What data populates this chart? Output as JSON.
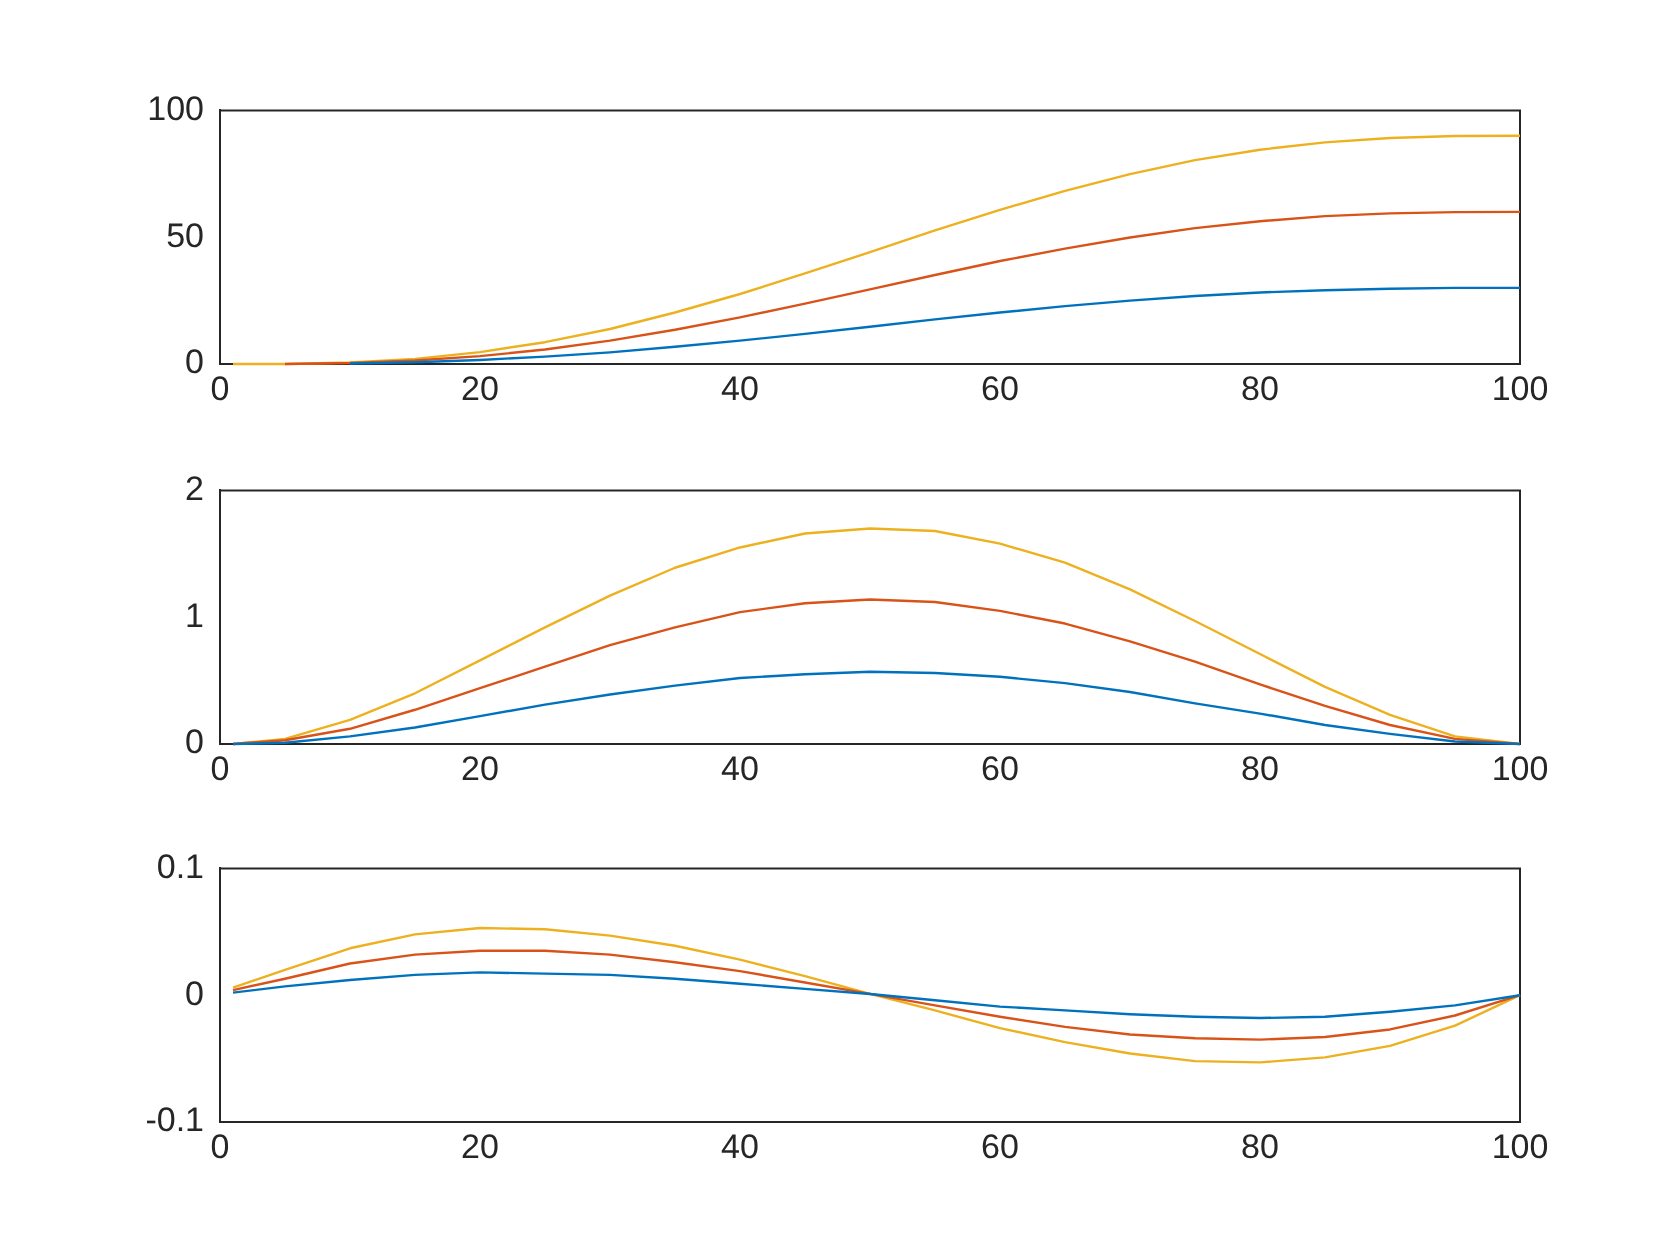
{
  "chart_data": [
    {
      "type": "line",
      "x": [
        1,
        5,
        10,
        15,
        20,
        25,
        30,
        35,
        40,
        45,
        50,
        55,
        60,
        65,
        70,
        75,
        80,
        85,
        90,
        95,
        100
      ],
      "xlim": [
        0,
        100
      ],
      "xticks": [
        0,
        20,
        40,
        60,
        80,
        100
      ],
      "ylim": [
        0,
        100
      ],
      "yticks": [
        0,
        50,
        100
      ],
      "grid": false,
      "legend": false,
      "marker": "none",
      "line_style": "solid",
      "series": [
        {
          "color": "#0072bd",
          "values": [
            null,
            null,
            0.2,
            0.7,
            1.6,
            2.9,
            4.6,
            6.8,
            9.2,
            11.9,
            14.7,
            17.6,
            20.3,
            22.8,
            25.0,
            26.8,
            28.2,
            29.1,
            29.7,
            30.0,
            30
          ]
        },
        {
          "color": "#d95319",
          "values": [
            null,
            0,
            0.4,
            1.4,
            3.1,
            5.7,
            9.2,
            13.5,
            18.4,
            23.8,
            29.4,
            35.1,
            40.6,
            45.5,
            49.9,
            53.6,
            56.3,
            58.3,
            59.4,
            59.9,
            60
          ]
        },
        {
          "color": "#edb120",
          "values": [
            0,
            0,
            0.6,
            2.0,
            4.7,
            8.6,
            13.8,
            20.3,
            27.6,
            35.7,
            44.1,
            52.7,
            60.8,
            68.3,
            74.9,
            80.4,
            84.5,
            87.4,
            89.1,
            89.9,
            90
          ]
        }
      ]
    },
    {
      "type": "line",
      "x": [
        1,
        5,
        10,
        15,
        20,
        25,
        30,
        35,
        40,
        45,
        50,
        55,
        60,
        65,
        70,
        75,
        80,
        85,
        90,
        95,
        100
      ],
      "xlim": [
        0,
        100
      ],
      "xticks": [
        0,
        20,
        40,
        60,
        80,
        100
      ],
      "ylim": [
        0,
        2
      ],
      "yticks": [
        0,
        1,
        2
      ],
      "grid": false,
      "legend": false,
      "marker": "none",
      "line_style": "solid",
      "series": [
        {
          "color": "#0072bd",
          "values": [
            0,
            0.01,
            0.06,
            0.13,
            0.22,
            0.31,
            0.39,
            0.46,
            0.52,
            0.55,
            0.57,
            0.56,
            0.53,
            0.48,
            0.41,
            0.32,
            0.24,
            0.15,
            0.08,
            0.02,
            0
          ]
        },
        {
          "color": "#d95319",
          "values": [
            0,
            0.03,
            0.12,
            0.27,
            0.44,
            0.61,
            0.78,
            0.92,
            1.04,
            1.11,
            1.14,
            1.12,
            1.05,
            0.95,
            0.81,
            0.65,
            0.47,
            0.3,
            0.15,
            0.04,
            0
          ]
        },
        {
          "color": "#edb120",
          "values": [
            0,
            0.04,
            0.19,
            0.4,
            0.66,
            0.92,
            1.17,
            1.39,
            1.55,
            1.66,
            1.7,
            1.68,
            1.58,
            1.43,
            1.22,
            0.97,
            0.71,
            0.45,
            0.23,
            0.06,
            0
          ]
        }
      ]
    },
    {
      "type": "line",
      "x": [
        1,
        5,
        10,
        15,
        20,
        25,
        30,
        35,
        40,
        45,
        50,
        55,
        60,
        65,
        70,
        75,
        80,
        85,
        90,
        95,
        100
      ],
      "xlim": [
        0,
        100
      ],
      "xticks": [
        0,
        20,
        40,
        60,
        80,
        100
      ],
      "ylim": [
        -0.1,
        0.1
      ],
      "yticks": [
        -0.1,
        0,
        0.1
      ],
      "grid": false,
      "legend": false,
      "marker": "none",
      "line_style": "solid",
      "series": [
        {
          "color": "#0072bd",
          "values": [
            0.002,
            0.007,
            0.012,
            0.016,
            0.018,
            0.017,
            0.016,
            0.013,
            0.009,
            0.005,
            0.001,
            -0.004,
            -0.009,
            -0.012,
            -0.015,
            -0.017,
            -0.018,
            -0.017,
            -0.013,
            -0.008,
            0
          ]
        },
        {
          "color": "#d95319",
          "values": [
            0.004,
            0.013,
            0.025,
            0.032,
            0.035,
            0.035,
            0.032,
            0.026,
            0.019,
            0.01,
            0.001,
            -0.008,
            -0.017,
            -0.025,
            -0.031,
            -0.034,
            -0.035,
            -0.033,
            -0.027,
            -0.016,
            0
          ]
        },
        {
          "color": "#edb120",
          "values": [
            0.006,
            0.02,
            0.037,
            0.048,
            0.053,
            0.052,
            0.047,
            0.039,
            0.028,
            0.015,
            0.001,
            -0.012,
            -0.026,
            -0.037,
            -0.046,
            -0.052,
            -0.053,
            -0.049,
            -0.04,
            -0.024,
            0
          ]
        }
      ]
    }
  ]
}
